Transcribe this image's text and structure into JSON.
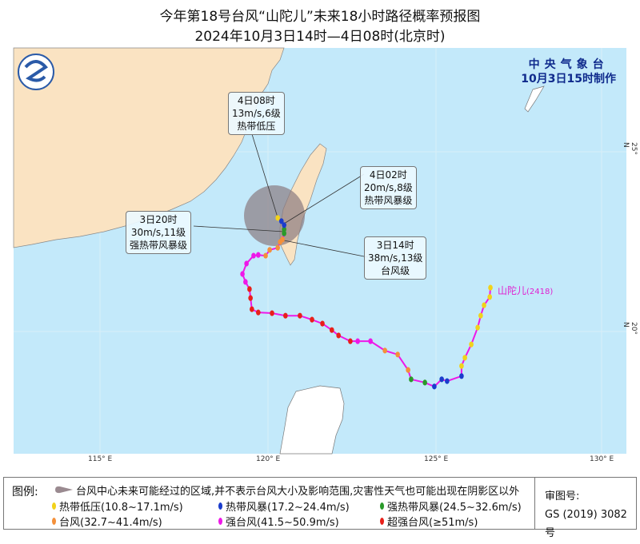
{
  "title": "今年第18号台风“山陀儿”未来18小时路径概率预报图",
  "subtitle": "2024年10月3日14时—4日08时(北京时)",
  "agency": {
    "name": "中央气象台",
    "made": "10月3日15时制作"
  },
  "typhoon": {
    "name": "山陀儿",
    "code": "(2418)"
  },
  "axes": {
    "lon_labels": [
      "115° E",
      "120° E",
      "125° E",
      "130° E"
    ],
    "lat_labels": [
      "25° N",
      "20° N"
    ]
  },
  "callouts": [
    {
      "time": "4日08时",
      "wind": "13m/s,6级",
      "level": "热带低压"
    },
    {
      "time": "4日02时",
      "wind": "20m/s,8级",
      "level": "热带风暴级"
    },
    {
      "time": "3日20时",
      "wind": "30m/s,11级",
      "level": "强热带风暴级"
    },
    {
      "time": "3日14时",
      "wind": "38m/s,13级",
      "level": "台风级"
    }
  ],
  "colors": {
    "TD": "#f2d21a",
    "TS": "#1a3ccc",
    "STS": "#2a9a2a",
    "TY": "#f4903a",
    "STY": "#ee18e8",
    "SuperTY": "#e8201a",
    "track_line": "#ee18e8",
    "cone": "#8a7a80",
    "land": "#fae3c2",
    "sea": "#c3e9fa"
  },
  "track": [
    [
      126.62,
      21.22,
      "TD"
    ],
    [
      126.6,
      20.96,
      "TD"
    ],
    [
      126.43,
      20.73,
      "TD"
    ],
    [
      126.33,
      20.44,
      "TD"
    ],
    [
      126.24,
      20.11,
      "TD"
    ],
    [
      126.05,
      19.64,
      "TD"
    ],
    [
      125.86,
      19.27,
      "TD"
    ],
    [
      125.76,
      19.04,
      "TD"
    ],
    [
      125.76,
      18.76,
      "TS"
    ],
    [
      125.33,
      18.62,
      "TS"
    ],
    [
      125.17,
      18.67,
      "TS"
    ],
    [
      124.95,
      18.47,
      "TS"
    ],
    [
      124.67,
      18.58,
      "STS"
    ],
    [
      124.26,
      18.67,
      "STS"
    ],
    [
      124.17,
      18.93,
      "TY"
    ],
    [
      123.86,
      19.36,
      "TY"
    ],
    [
      123.48,
      19.47,
      "TY"
    ],
    [
      123.05,
      19.73,
      "STY"
    ],
    [
      122.67,
      19.73,
      "STY"
    ],
    [
      122.45,
      19.73,
      "SuperTY"
    ],
    [
      122.1,
      19.89,
      "SuperTY"
    ],
    [
      121.9,
      20.04,
      "SuperTY"
    ],
    [
      121.62,
      20.22,
      "SuperTY"
    ],
    [
      121.31,
      20.33,
      "SuperTY"
    ],
    [
      120.95,
      20.44,
      "SuperTY"
    ],
    [
      120.52,
      20.44,
      "SuperTY"
    ],
    [
      120.12,
      20.51,
      "SuperTY"
    ],
    [
      119.71,
      20.53,
      "SuperTY"
    ],
    [
      119.52,
      20.62,
      "SuperTY"
    ],
    [
      119.48,
      20.93,
      "SuperTY"
    ],
    [
      119.45,
      21.18,
      "SuperTY"
    ],
    [
      119.33,
      21.38,
      "STY"
    ],
    [
      119.24,
      21.6,
      "STY"
    ],
    [
      119.36,
      21.89,
      "STY"
    ],
    [
      119.57,
      22.11,
      "STY"
    ],
    [
      119.71,
      22.13,
      "STY"
    ],
    [
      119.93,
      22.11,
      "TY"
    ],
    [
      120.05,
      22.27,
      "TY"
    ],
    [
      120.29,
      22.33,
      "TY"
    ],
    [
      120.36,
      22.49,
      "TY"
    ],
    [
      120.43,
      22.56,
      "TY"
    ],
    [
      120.48,
      22.73,
      "STS"
    ],
    [
      120.48,
      22.84,
      "STS"
    ],
    [
      120.48,
      22.96,
      "TS"
    ],
    [
      120.4,
      23.07,
      "TS"
    ],
    [
      120.29,
      23.16,
      "TD"
    ]
  ],
  "legend": {
    "title": "图例:",
    "cone_desc": "台风中心未来可能经过的区域,并不表示台风大小及影响范围,灾害性天气也可能出现在阴影区以外",
    "items": [
      {
        "key": "TD",
        "label": "热带低压(10.8~17.1m/s)"
      },
      {
        "key": "TS",
        "label": "热带风暴(17.2~24.4m/s)"
      },
      {
        "key": "STS",
        "label": "强热带风暴(24.5~32.6m/s)"
      },
      {
        "key": "TY",
        "label": "台风(32.7~41.4m/s)"
      },
      {
        "key": "STY",
        "label": "强台风(41.5~50.9m/s)"
      },
      {
        "key": "SuperTY",
        "label": "超强台风(≥51m/s)"
      }
    ],
    "review_label": "审图号:",
    "review_no": "GS (2019) 3082号"
  }
}
